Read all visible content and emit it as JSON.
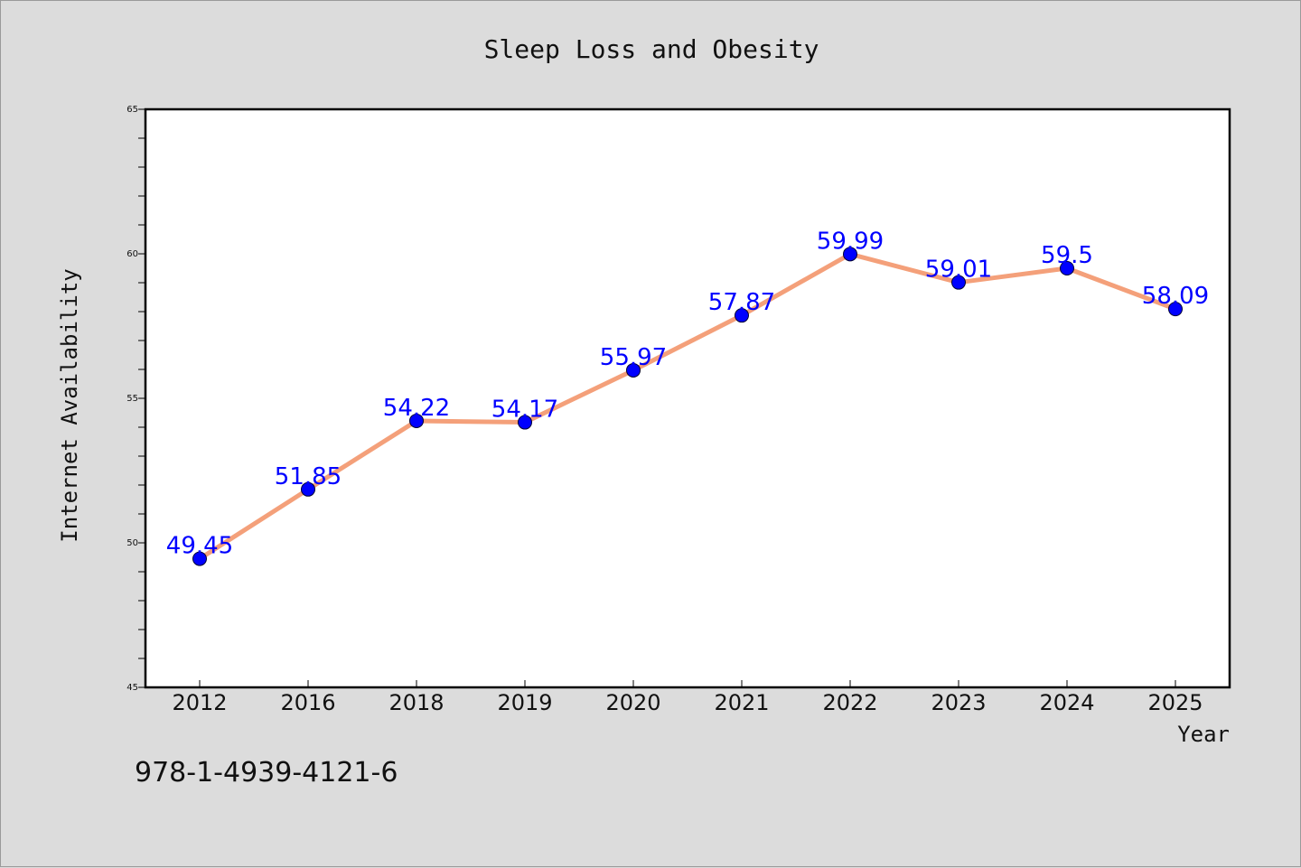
{
  "chart_data": {
    "type": "line",
    "title": "Sleep Loss and Obesity",
    "xlabel": "Year",
    "ylabel": "Internet Availability",
    "categories": [
      "2012",
      "2016",
      "2018",
      "2019",
      "2020",
      "2021",
      "2022",
      "2023",
      "2024",
      "2025"
    ],
    "values": [
      49.45,
      51.85,
      54.22,
      54.17,
      55.97,
      57.87,
      59.99,
      59.01,
      59.5,
      58.09
    ],
    "data_labels": [
      "49.45",
      "51.85",
      "54.22",
      "54.17",
      "55.97",
      "57.87",
      "59.99",
      "59.01",
      "59.5",
      "58.09"
    ],
    "ylim": [
      45,
      65
    ],
    "yticks": [
      "45",
      "50",
      "55",
      "60",
      "65"
    ],
    "grid": false,
    "line_color": "#f4a07a",
    "marker_color": "#0000ff",
    "label_color": "#0000ff"
  },
  "caption": "978-1-4939-4121-6"
}
